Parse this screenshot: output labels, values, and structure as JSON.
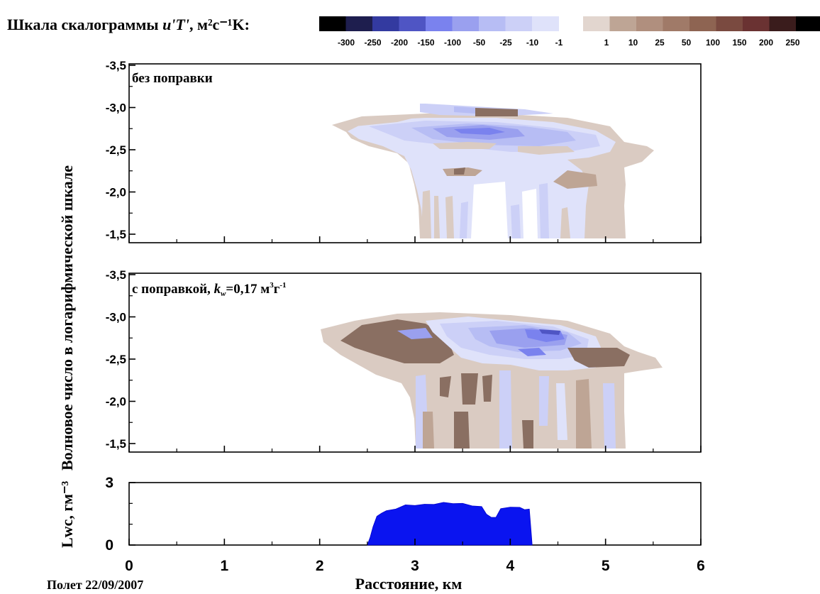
{
  "colorbar": {
    "title_prefix": "Шкала скалограммы",
    "title_var": "u'T'",
    "title_units": "м²с⁻¹K:",
    "negative": {
      "colors": [
        "#000000",
        "#1e1e4e",
        "#333aa0",
        "#4f55c4",
        "#7a82ee",
        "#9aa0ef",
        "#b7bdf4",
        "#ccd0f7",
        "#dfe2fa"
      ],
      "labels": [
        "-300",
        "-250",
        "-200",
        "-150",
        "-100",
        "-50",
        "-25",
        "-10",
        "-1"
      ]
    },
    "positive": {
      "colors": [
        "#e2d6cf",
        "#bea595",
        "#b08f7e",
        "#a07a68",
        "#8e6452",
        "#7a4a40",
        "#6a3232",
        "#3a1c1c",
        "#000000"
      ],
      "labels": [
        "1",
        "10",
        "25",
        "50",
        "100",
        "150",
        "200",
        "250"
      ]
    }
  },
  "chart_data": [
    {
      "type": "heatmap",
      "annotation": "без поправки",
      "ylim": [
        -1.5,
        -3.5
      ],
      "yticks": [
        "-3,5",
        "-3,0",
        "-2,5",
        "-2,0",
        "-1,5"
      ],
      "xlim": [
        0,
        6
      ]
    },
    {
      "type": "heatmap",
      "annotation_prefix": "с поправкой, ",
      "annotation_var": "k",
      "annotation_sub": "w",
      "annotation_value": "=0,17 м",
      "annotation_sup1": "3",
      "annotation_mid": "г",
      "annotation_sup2": "-1",
      "ylim": [
        -1.5,
        -3.5
      ],
      "yticks": [
        "-3,5",
        "-3,0",
        "-2,5",
        "-2,0",
        "-1,5"
      ],
      "xlim": [
        0,
        6
      ]
    },
    {
      "type": "area",
      "ylabel": "Lwc, гм⁻³",
      "ylim": [
        0,
        3
      ],
      "yticks": [
        "3",
        "0"
      ],
      "x": [
        2.5,
        2.53,
        2.56,
        2.6,
        2.65,
        2.7,
        2.8,
        2.9,
        3.0,
        3.1,
        3.2,
        3.3,
        3.4,
        3.5,
        3.6,
        3.7,
        3.75,
        3.8,
        3.85,
        3.9,
        4.0,
        4.1,
        4.15,
        4.2,
        4.22,
        4.23
      ],
      "values": [
        0,
        0.35,
        0.9,
        1.35,
        1.55,
        1.62,
        1.75,
        1.9,
        1.92,
        1.93,
        1.97,
        2.02,
        2.01,
        1.97,
        1.9,
        1.82,
        1.5,
        1.3,
        1.35,
        1.72,
        1.84,
        1.78,
        1.72,
        1.7,
        0.6,
        0
      ]
    }
  ],
  "shared_axis": {
    "xticks": [
      "0",
      "1",
      "2",
      "3",
      "4",
      "5",
      "6"
    ],
    "xlabel": "Расстояние, км",
    "ylabel_contours": "Волновое число в логарифмической шкале"
  },
  "footer_note": "Полет 22/09/2007"
}
